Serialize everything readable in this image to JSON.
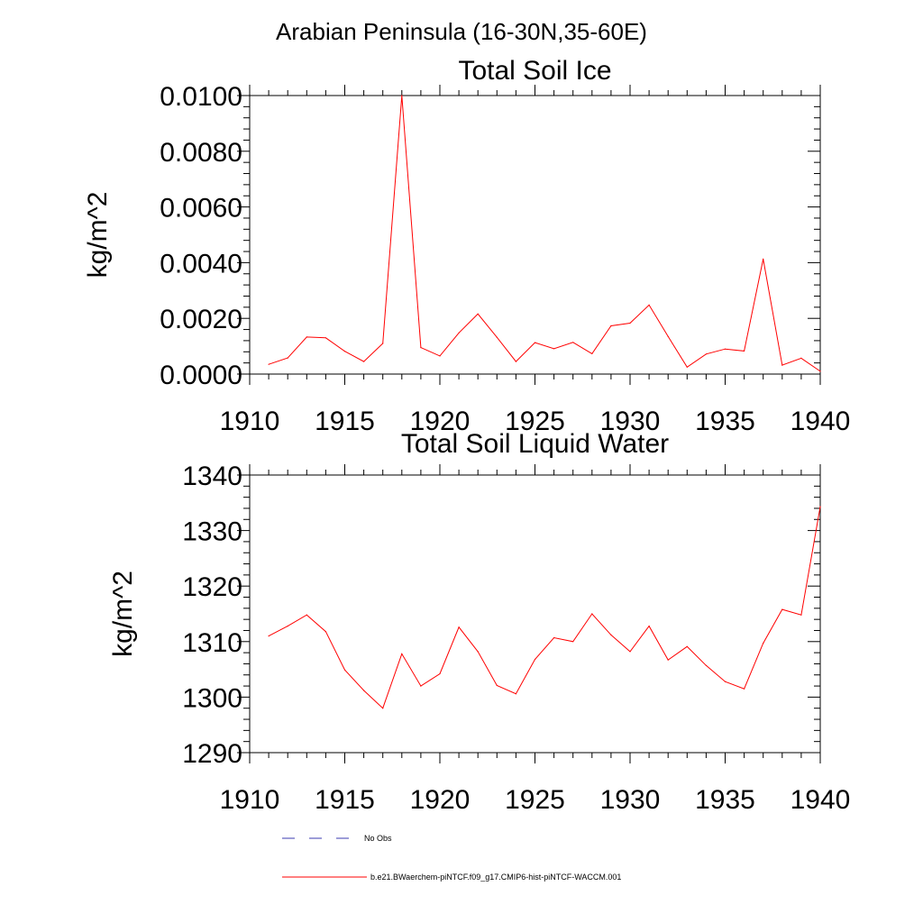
{
  "page_title": "Arabian Peninsula (16-30N,35-60E)",
  "colors": {
    "series": "#ff0000",
    "obs": "#3b3bb0",
    "axis": "#000000"
  },
  "legend": {
    "items": [
      {
        "label": "No Obs",
        "style": "dashed",
        "color": "#3b3bb0"
      },
      {
        "label": "b.e21.BWaerchem-piNTCF.f09_g17.CMIP6-hist-piNTCF-WACCM.001",
        "style": "solid",
        "color": "#ff0000"
      }
    ]
  },
  "chart_data": [
    {
      "type": "line",
      "title": "Total Soil Ice",
      "xlabel": "",
      "ylabel": "kg/m^2",
      "xlim": [
        1910,
        1940
      ],
      "ylim": [
        0,
        0.01
      ],
      "x_ticks": [
        "1910",
        "1915",
        "1920",
        "1925",
        "1930",
        "1935",
        "1940"
      ],
      "y_ticks": [
        "0.0000",
        "0.0020",
        "0.0040",
        "0.0060",
        "0.0080",
        "0.0100"
      ],
      "grid": false,
      "x": [
        1911,
        1912,
        1913,
        1914,
        1915,
        1916,
        1917,
        1918,
        1919,
        1920,
        1921,
        1922,
        1923,
        1924,
        1925,
        1926,
        1927,
        1928,
        1929,
        1930,
        1931,
        1932,
        1933,
        1934,
        1935,
        1936,
        1937,
        1938,
        1939,
        1940
      ],
      "series": [
        {
          "name": "b.e21.BWaerchem-piNTCF.f09_g17.CMIP6-hist-piNTCF-WACCM.001",
          "values": [
            0.00035,
            0.00058,
            0.00133,
            0.0013,
            0.00082,
            0.00045,
            0.0011,
            0.01,
            0.00095,
            0.00065,
            0.00148,
            0.00216,
            0.00132,
            0.00045,
            0.00113,
            0.00091,
            0.00114,
            0.00073,
            0.00173,
            0.00183,
            0.00248,
            0.00135,
            0.00025,
            0.00072,
            0.0009,
            0.00083,
            0.00413,
            0.00032,
            0.00057,
            0.0001
          ]
        }
      ]
    },
    {
      "type": "line",
      "title": "Total Soil Liquid Water",
      "xlabel": "",
      "ylabel": "kg/m^2",
      "xlim": [
        1910,
        1940
      ],
      "ylim": [
        1290,
        1340
      ],
      "x_ticks": [
        "1910",
        "1915",
        "1920",
        "1925",
        "1930",
        "1935",
        "1940"
      ],
      "y_ticks": [
        "1290",
        "1300",
        "1310",
        "1320",
        "1330",
        "1340"
      ],
      "grid": false,
      "x": [
        1911,
        1912,
        1913,
        1914,
        1915,
        1916,
        1917,
        1918,
        1919,
        1920,
        1921,
        1922,
        1923,
        1924,
        1925,
        1926,
        1927,
        1928,
        1929,
        1930,
        1931,
        1932,
        1933,
        1934,
        1935,
        1936,
        1937,
        1938,
        1939,
        1940
      ],
      "series": [
        {
          "name": "b.e21.BWaerchem-piNTCF.f09_g17.CMIP6-hist-piNTCF-WACCM.001",
          "values": [
            1311.0,
            1312.8,
            1314.8,
            1311.8,
            1304.9,
            1301.2,
            1298.0,
            1307.8,
            1302.0,
            1304.2,
            1312.6,
            1308.2,
            1302.1,
            1300.6,
            1306.8,
            1310.7,
            1310.0,
            1315.0,
            1311.2,
            1308.2,
            1312.8,
            1306.7,
            1309.1,
            1305.7,
            1302.8,
            1301.5,
            1309.7,
            1315.8,
            1314.8,
            1334.3
          ]
        }
      ]
    }
  ]
}
